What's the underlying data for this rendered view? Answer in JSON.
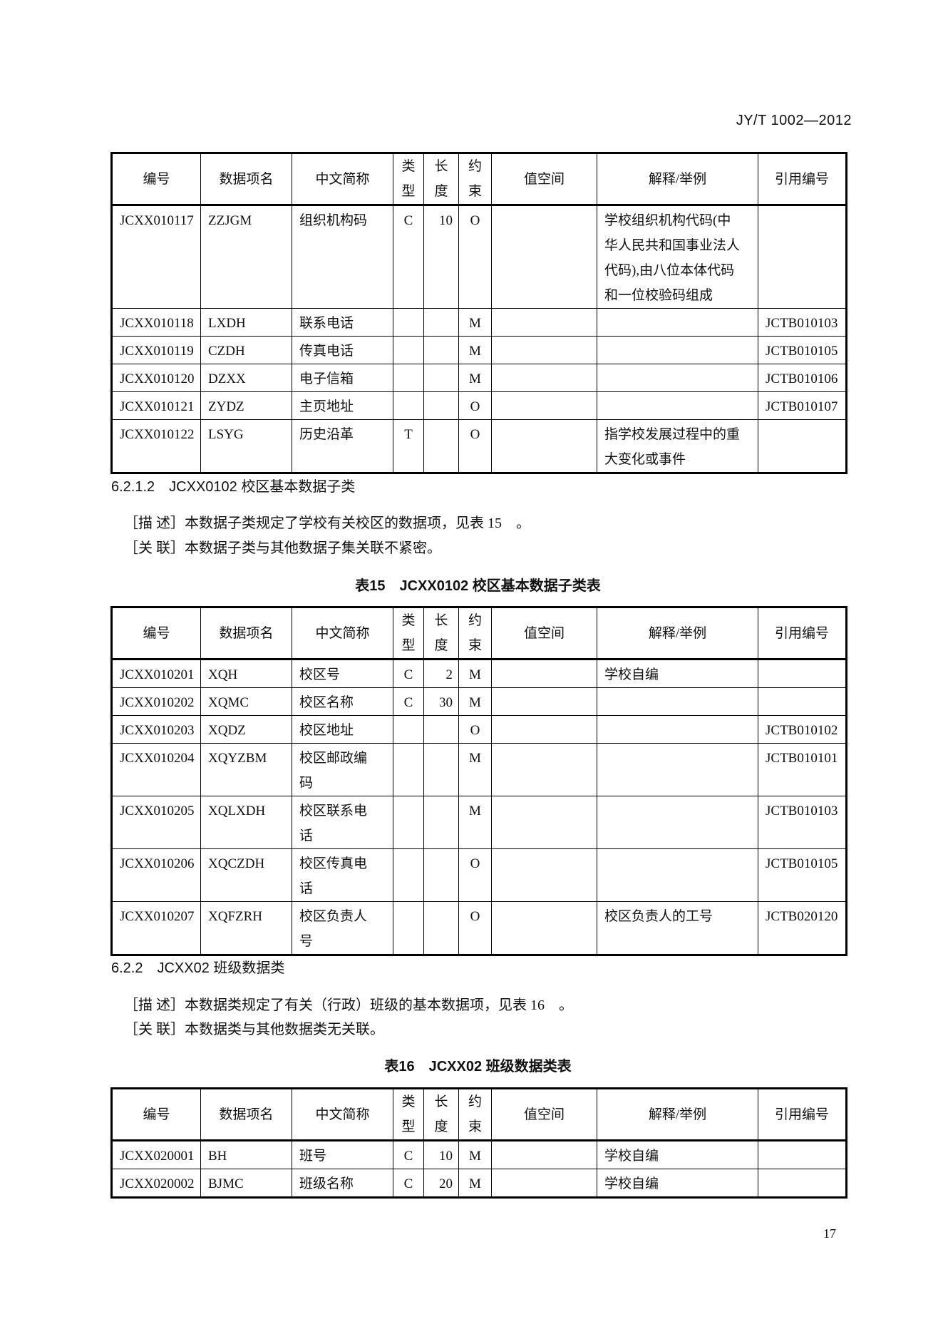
{
  "page_header": "JY/T 1002—2012",
  "columns": [
    "编号",
    "数据项名",
    "中文简称",
    "类\n型",
    "长\n度",
    "约\n束",
    "值空间",
    "解释/举例",
    "引用编号"
  ],
  "table_a": {
    "rows": [
      [
        "JCXX010117",
        "ZZJGM",
        "组织机构码",
        "C",
        "10",
        "O",
        "",
        "学校组织机构代码(中\n华人民共和国事业法人\n代码),由八位本体代码\n和一位校验码组成",
        ""
      ],
      [
        "JCXX010118",
        "LXDH",
        "联系电话",
        "",
        "",
        "M",
        "",
        "",
        "JCTB010103"
      ],
      [
        "JCXX010119",
        "CZDH",
        "传真电话",
        "",
        "",
        "M",
        "",
        "",
        "JCTB010105"
      ],
      [
        "JCXX010120",
        "DZXX",
        "电子信箱",
        "",
        "",
        "M",
        "",
        "",
        "JCTB010106"
      ],
      [
        "JCXX010121",
        "ZYDZ",
        "主页地址",
        "",
        "",
        "O",
        "",
        "",
        "JCTB010107"
      ],
      [
        "JCXX010122",
        "LSYG",
        "历史沿革",
        "T",
        "",
        "O",
        "",
        "指学校发展过程中的重\n大变化或事件",
        ""
      ]
    ]
  },
  "section_1": {
    "heading": "6.2.1.2　JCXX0102 校区基本数据子类",
    "desc": "［描 述］本数据子类规定了学校有关校区的数据项，见表 15　。",
    "relation": "［关 联］本数据子类与其他数据子集关联不紧密。",
    "caption": "表15　JCXX0102 校区基本数据子类表"
  },
  "table_b": {
    "rows": [
      [
        "JCXX010201",
        "XQH",
        "校区号",
        "C",
        "2",
        "M",
        "",
        "学校自编",
        ""
      ],
      [
        "JCXX010202",
        "XQMC",
        "校区名称",
        "C",
        "30",
        "M",
        "",
        "",
        ""
      ],
      [
        "JCXX010203",
        "XQDZ",
        "校区地址",
        "",
        "",
        "O",
        "",
        "",
        "JCTB010102"
      ],
      [
        "JCXX010204",
        "XQYZBM",
        "校区邮政编\n码",
        "",
        "",
        "M",
        "",
        "",
        "JCTB010101"
      ],
      [
        "JCXX010205",
        "XQLXDH",
        "校区联系电\n话",
        "",
        "",
        "M",
        "",
        "",
        "JCTB010103"
      ],
      [
        "JCXX010206",
        "XQCZDH",
        "校区传真电\n话",
        "",
        "",
        "O",
        "",
        "",
        "JCTB010105"
      ],
      [
        "JCXX010207",
        "XQFZRH",
        "校区负责人\n号",
        "",
        "",
        "O",
        "",
        "校区负责人的工号",
        "JCTB020120"
      ]
    ]
  },
  "section_2": {
    "heading": "6.2.2　JCXX02 班级数据类",
    "desc": "［描 述］本数据类规定了有关（行政）班级的基本数据项，见表 16　。",
    "relation": "［关 联］本数据类与其他数据类无关联。",
    "caption": "表16　JCXX02 班级数据类表"
  },
  "table_c": {
    "rows": [
      [
        "JCXX020001",
        "BH",
        "班号",
        "C",
        "10",
        "M",
        "",
        "学校自编",
        ""
      ],
      [
        "JCXX020002",
        "BJMC",
        "班级名称",
        "C",
        "20",
        "M",
        "",
        "学校自编",
        ""
      ]
    ]
  },
  "page_number": "17"
}
